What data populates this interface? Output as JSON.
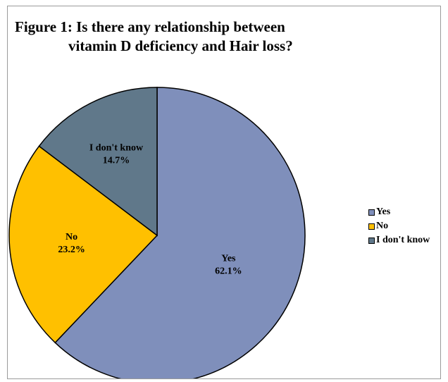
{
  "title": {
    "line1": "Figure 1: Is there any relationship between",
    "line2": "vitamin D deficiency and Hair loss?"
  },
  "chart_data": {
    "type": "pie",
    "categories": [
      "Yes",
      "No",
      "I don't know"
    ],
    "values": [
      62.1,
      23.2,
      14.7
    ],
    "value_labels": [
      "62.1%",
      "23.2%",
      "14.7%"
    ],
    "colors": [
      "#7f8fbb",
      "#ffc000",
      "#60788a"
    ],
    "title": "Figure 1: Is there any relationship between vitamin D deficiency and Hair loss?",
    "legend_position": "right"
  },
  "legend": [
    {
      "label": "Yes",
      "color": "#7f8fbb"
    },
    {
      "label": "No",
      "color": "#ffc000"
    },
    {
      "label": "I don't know",
      "color": "#60788a"
    }
  ]
}
